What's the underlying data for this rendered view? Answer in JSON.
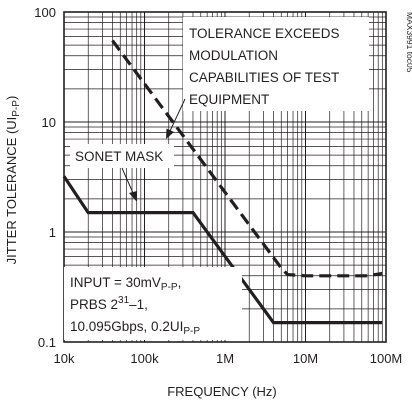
{
  "chart_data": {
    "type": "line",
    "xlabel": "FREQUENCY (Hz)",
    "ylabel_parts": {
      "main": "JITTER TOLERANCE (UI",
      "sub": "P-P",
      "close": ")"
    },
    "x_scale": "log",
    "y_scale": "log",
    "xlim": [
      10000,
      100000000
    ],
    "ylim": [
      0.1,
      100
    ],
    "x_ticks": [
      {
        "value": 10000,
        "label": "10k"
      },
      {
        "value": 100000,
        "label": "100k"
      },
      {
        "value": 1000000,
        "label": "1M"
      },
      {
        "value": 10000000,
        "label": "10M"
      },
      {
        "value": 100000000,
        "label": "100M"
      }
    ],
    "y_ticks": [
      {
        "value": 0.1,
        "label": "0.1"
      },
      {
        "value": 1,
        "label": "1"
      },
      {
        "value": 10,
        "label": "10"
      },
      {
        "value": 100,
        "label": "100"
      }
    ],
    "grid": true,
    "series": [
      {
        "style": "dashed",
        "x": [
          40000,
          5000000,
          6000000,
          10000000,
          30000000,
          60000000,
          90000000
        ],
        "y": [
          55,
          0.47,
          0.41,
          0.4,
          0.4,
          0.4,
          0.42
        ]
      },
      {
        "style": "solid-mask",
        "x": [
          10000,
          20000,
          400000,
          4000000,
          5000000,
          90000000
        ],
        "y": [
          3.2,
          1.5,
          1.5,
          0.15,
          0.15,
          0.15
        ]
      }
    ],
    "annotations": {
      "tolerance": [
        "TOLERANCE EXCEEDS",
        "MODULATION",
        "CAPABILITIES OF TEST",
        "EQUIPMENT"
      ],
      "sonet_mask": "SONET MASK",
      "conditions": {
        "line1_main": "INPUT = 30mV",
        "line1_sub": "P-P",
        "line1_tail": ",",
        "line2_main": "PRBS 2",
        "line2_sup": "31",
        "line2_tail": "–1,",
        "line3_main": "10.095Gbps, 0.2UI",
        "line3_sub": "P-P"
      }
    },
    "chip_id": "MAX3991 toc05"
  }
}
